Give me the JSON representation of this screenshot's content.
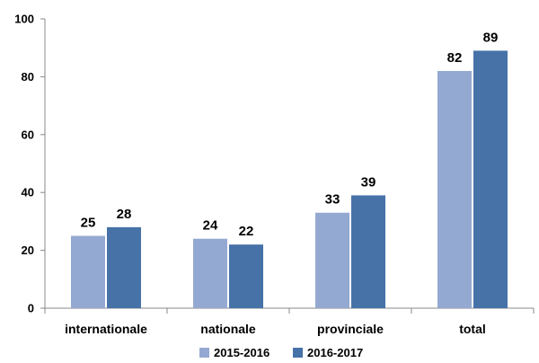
{
  "chart_data": {
    "type": "bar",
    "title": "",
    "xlabel": "",
    "ylabel": "",
    "categories": [
      "internationale",
      "nationale",
      "provinciale",
      "total"
    ],
    "series": [
      {
        "name": "2015-2016",
        "values": [
          25,
          24,
          33,
          82
        ],
        "color": "#94a9d1"
      },
      {
        "name": "2016-2017",
        "values": [
          28,
          22,
          39,
          89
        ],
        "color": "#4672a8"
      }
    ],
    "ylim": [
      0,
      100
    ],
    "yticks": [
      0,
      20,
      40,
      60,
      80,
      100
    ],
    "grid": false,
    "legend": "bottom"
  }
}
